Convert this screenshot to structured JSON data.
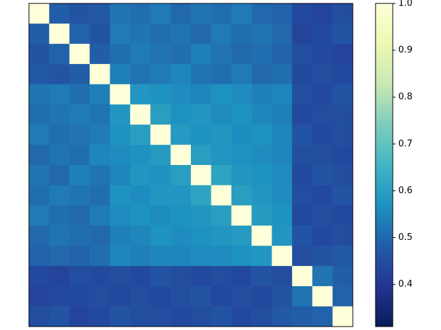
{
  "chart_data": {
    "type": "heatmap",
    "z": [
      [
        1.0,
        0.48,
        0.46,
        0.47,
        0.52,
        0.51,
        0.53,
        0.5,
        0.52,
        0.51,
        0.53,
        0.5,
        0.49,
        0.44,
        0.43,
        0.45
      ],
      [
        0.48,
        1.0,
        0.49,
        0.46,
        0.53,
        0.52,
        0.51,
        0.52,
        0.5,
        0.53,
        0.51,
        0.52,
        0.5,
        0.43,
        0.44,
        0.46
      ],
      [
        0.46,
        0.49,
        1.0,
        0.48,
        0.51,
        0.53,
        0.52,
        0.51,
        0.54,
        0.52,
        0.5,
        0.51,
        0.49,
        0.45,
        0.44,
        0.43
      ],
      [
        0.47,
        0.46,
        0.48,
        1.0,
        0.54,
        0.52,
        0.53,
        0.55,
        0.52,
        0.51,
        0.53,
        0.5,
        0.51,
        0.44,
        0.45,
        0.44
      ],
      [
        0.52,
        0.53,
        0.51,
        0.54,
        1.0,
        0.58,
        0.57,
        0.56,
        0.55,
        0.57,
        0.56,
        0.54,
        0.55,
        0.45,
        0.44,
        0.46
      ],
      [
        0.51,
        0.52,
        0.53,
        0.52,
        0.58,
        1.0,
        0.6,
        0.57,
        0.58,
        0.56,
        0.57,
        0.55,
        0.54,
        0.44,
        0.45,
        0.45
      ],
      [
        0.53,
        0.51,
        0.52,
        0.53,
        0.57,
        0.6,
        1.0,
        0.59,
        0.57,
        0.58,
        0.56,
        0.57,
        0.55,
        0.46,
        0.44,
        0.45
      ],
      [
        0.5,
        0.52,
        0.51,
        0.55,
        0.56,
        0.57,
        0.59,
        1.0,
        0.6,
        0.58,
        0.57,
        0.56,
        0.55,
        0.45,
        0.45,
        0.44
      ],
      [
        0.52,
        0.5,
        0.54,
        0.52,
        0.55,
        0.58,
        0.57,
        0.6,
        1.0,
        0.61,
        0.58,
        0.57,
        0.56,
        0.44,
        0.46,
        0.45
      ],
      [
        0.51,
        0.53,
        0.52,
        0.51,
        0.57,
        0.56,
        0.58,
        0.58,
        0.61,
        1.0,
        0.6,
        0.58,
        0.56,
        0.45,
        0.44,
        0.46
      ],
      [
        0.53,
        0.51,
        0.5,
        0.53,
        0.56,
        0.57,
        0.56,
        0.57,
        0.58,
        0.6,
        1.0,
        0.59,
        0.57,
        0.44,
        0.45,
        0.44
      ],
      [
        0.5,
        0.52,
        0.51,
        0.5,
        0.54,
        0.55,
        0.57,
        0.56,
        0.57,
        0.58,
        0.59,
        1.0,
        0.58,
        0.46,
        0.44,
        0.45
      ],
      [
        0.49,
        0.5,
        0.49,
        0.51,
        0.55,
        0.54,
        0.55,
        0.55,
        0.56,
        0.56,
        0.57,
        0.58,
        1.0,
        0.45,
        0.46,
        0.47
      ],
      [
        0.44,
        0.43,
        0.45,
        0.44,
        0.45,
        0.44,
        0.46,
        0.45,
        0.44,
        0.45,
        0.44,
        0.46,
        0.45,
        1.0,
        0.52,
        0.48
      ],
      [
        0.43,
        0.44,
        0.44,
        0.45,
        0.44,
        0.45,
        0.44,
        0.45,
        0.46,
        0.44,
        0.45,
        0.44,
        0.46,
        0.52,
        1.0,
        0.49
      ],
      [
        0.45,
        0.46,
        0.43,
        0.44,
        0.46,
        0.45,
        0.45,
        0.44,
        0.45,
        0.46,
        0.44,
        0.45,
        0.47,
        0.48,
        0.49,
        1.0
      ]
    ],
    "colormap": [
      "#081d58",
      "#253494",
      "#225ea8",
      "#1d91c0",
      "#41b6c4",
      "#7fcdbb",
      "#c7e9b4",
      "#edf8b1",
      "#ffffd9"
    ],
    "clim": [
      0.31,
      1.0
    ],
    "cticks": [
      0.4,
      0.5,
      0.6,
      0.7,
      0.8,
      0.9,
      {
        "value": 1,
        "label": "1.0"
      }
    ]
  }
}
